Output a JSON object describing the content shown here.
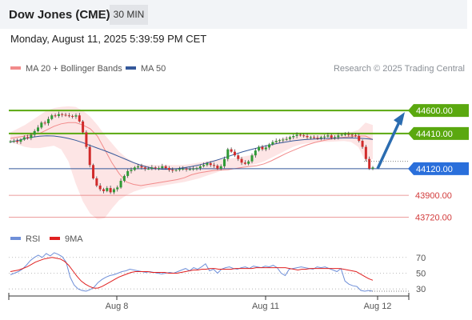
{
  "header": {
    "title": "Dow Jones (CME)",
    "interval": "30 MIN"
  },
  "datetime": "Monday, August 11, 2025 5:39:59 PM CET",
  "legend": {
    "bollinger": "MA 20 + Bollinger Bands",
    "ma50": "MA 50",
    "rsi": "RSI",
    "rsi_ma": "9MA"
  },
  "research_label": "Research © 2025 Trading Central",
  "colors": {
    "bollinger": "#f28b8b",
    "bollinger_fill": "#fde1e1",
    "ma50": "#34589a",
    "rsi": "#6f8fd8",
    "rsi_ma": "#e02020",
    "resistance": "#5aa80f",
    "support_box": "#2a6fdb",
    "support_lines": "#e05c5c",
    "arrow": "#2b6cb0",
    "up_candle": "#2f9a35",
    "down_candle": "#d12b2b"
  },
  "chart_data": [
    {
      "type": "candlestick",
      "ylim": [
        43650,
        44720
      ],
      "x_ticks": [
        "Aug 8",
        "Aug 11",
        "Aug 12"
      ],
      "levels": [
        {
          "label": "44600.00",
          "value": 44600,
          "style": "resistance-box"
        },
        {
          "label": "44410.00",
          "value": 44410,
          "style": "resistance-box"
        },
        {
          "label": "44120.00",
          "value": 44120,
          "style": "pivot-box"
        },
        {
          "label": "43900.00",
          "value": 43900,
          "style": "support-text"
        },
        {
          "label": "43720.00",
          "value": 43720,
          "style": "support-text"
        }
      ],
      "forecast_arrow": {
        "from": 44120,
        "to": 44600
      },
      "closes": [
        44345,
        44350,
        44342,
        44360,
        44380,
        44372,
        44400,
        44430,
        44460,
        44500,
        44495,
        44530,
        44560,
        44555,
        44570,
        44565,
        44560,
        44555,
        44550,
        44560,
        44510,
        44420,
        44300,
        44150,
        44040,
        43980,
        43950,
        43935,
        43960,
        43925,
        43950,
        43965,
        44020,
        44060,
        44100,
        44110,
        44130,
        44140,
        44130,
        44120,
        44120,
        44130,
        44125,
        44125,
        44140,
        44125,
        44110,
        44105,
        44110,
        44120,
        44120,
        44115,
        44115,
        44120,
        44125,
        44140,
        44150,
        44165,
        44150,
        44145,
        44120,
        44140,
        44200,
        44280,
        44260,
        44230,
        44200,
        44170,
        44160,
        44180,
        44230,
        44270,
        44300,
        44280,
        44295,
        44320,
        44340,
        44350,
        44355,
        44360,
        44365,
        44380,
        44390,
        44400,
        44395,
        44390,
        44380,
        44380,
        44375,
        44370,
        44380,
        44385,
        44395,
        44375,
        44380,
        44395,
        44400,
        44405,
        44400,
        44395,
        44390,
        44350,
        44300,
        44200,
        44120,
        44130
      ],
      "bollinger_mid": [
        44370,
        44380,
        44390,
        44400,
        44410,
        44440,
        44470,
        44490,
        44500,
        44500,
        44480,
        44450,
        44390,
        44280,
        44170,
        44080,
        44010,
        43990,
        43980,
        43990,
        44000,
        44010,
        44020,
        44030,
        44045,
        44070,
        44085,
        44095,
        44105,
        44110,
        44112,
        44120,
        44130,
        44138,
        44145,
        44160,
        44185,
        44215,
        44245,
        44270,
        44295,
        44318,
        44336,
        44350,
        44362,
        44372,
        44380,
        44385,
        44390,
        44390,
        44360
      ],
      "bollinger_upper": [
        44420,
        44450,
        44480,
        44520,
        44560,
        44600,
        44620,
        44630,
        44635,
        44630,
        44600,
        44550,
        44480,
        44400,
        44330,
        44260,
        44210,
        44175,
        44155,
        44150,
        44150,
        44150,
        44150,
        44150,
        44152,
        44160,
        44170,
        44180,
        44190,
        44196,
        44200,
        44210,
        44220,
        44230,
        44250,
        44290,
        44330,
        44360,
        44380,
        44390,
        44400,
        44405,
        44408,
        44410,
        44412,
        44415,
        44418,
        44420,
        44440,
        44500,
        44480
      ],
      "bollinger_lower": [
        44340,
        44320,
        44300,
        44290,
        44290,
        44300,
        44310,
        44280,
        44180,
        44000,
        43850,
        43750,
        43700,
        43710,
        43790,
        43860,
        43900,
        43930,
        43950,
        43965,
        43970,
        43980,
        43990,
        44000,
        44010,
        44025,
        44040,
        44060,
        44080,
        44100,
        44110,
        44120,
        44130,
        44145,
        44160,
        44180,
        44210,
        44240,
        44270,
        44300,
        44320,
        44330,
        44335,
        44340,
        44342,
        44345,
        44348,
        44340,
        44300,
        44180,
        44200
      ],
      "ma50": [
        44340,
        44352,
        44368,
        44380,
        44388,
        44392,
        44390,
        44382,
        44370,
        44355,
        44335,
        44312,
        44290,
        44268,
        44245,
        44220,
        44195,
        44170,
        44148,
        44132,
        44120,
        44115,
        44115,
        44120,
        44128,
        44138,
        44150,
        44165,
        44182,
        44200,
        44220,
        44240,
        44258,
        44275,
        44290,
        44305,
        44318,
        44330,
        44340,
        44350,
        44357,
        44362,
        44365,
        44368,
        44370,
        44372,
        44373,
        44374,
        44372,
        44368,
        44362
      ]
    },
    {
      "type": "line",
      "title": "RSI",
      "ylim": [
        25,
        80
      ],
      "y_ticks": [
        30,
        50,
        70
      ],
      "series": [
        {
          "name": "RSI",
          "values": [
            48,
            50,
            52,
            55,
            60,
            66,
            70,
            73,
            70,
            75,
            72,
            76,
            74,
            71,
            64,
            45,
            35,
            30,
            28,
            27,
            29,
            32,
            38,
            42,
            45,
            47,
            48,
            50,
            52,
            53,
            55,
            54,
            53,
            52,
            51,
            52,
            51,
            50,
            49,
            50,
            51,
            50,
            52,
            54,
            56,
            53,
            57,
            55,
            58,
            62,
            53,
            55,
            50,
            55,
            57,
            58,
            56,
            55,
            57,
            58,
            56,
            59,
            58,
            57,
            59,
            58,
            60,
            57,
            50,
            47,
            55,
            56,
            57,
            58,
            57,
            56,
            55,
            58,
            57,
            58,
            56,
            54,
            52,
            56,
            40,
            36,
            34,
            33,
            28,
            27,
            28,
            27
          ]
        },
        {
          "name": "9MA",
          "values": [
            52,
            53,
            54,
            56,
            58,
            61,
            64,
            66,
            68,
            69,
            70,
            69,
            68,
            65,
            60,
            53,
            46,
            40,
            36,
            33,
            31,
            31,
            33,
            36,
            39,
            42,
            45,
            47,
            49,
            51,
            52,
            52,
            52,
            52,
            51,
            51,
            51,
            51,
            50,
            50,
            50,
            51,
            52,
            53,
            54,
            54,
            55,
            55,
            56,
            56,
            55,
            55,
            55,
            55,
            56,
            56,
            56,
            56,
            56,
            57,
            57,
            57,
            57,
            57,
            57,
            57,
            57,
            56,
            55,
            54,
            55,
            55,
            56,
            56,
            56,
            56,
            56,
            56,
            56,
            56,
            55,
            54,
            53,
            52,
            49,
            46,
            43,
            41
          ]
        }
      ]
    }
  ]
}
